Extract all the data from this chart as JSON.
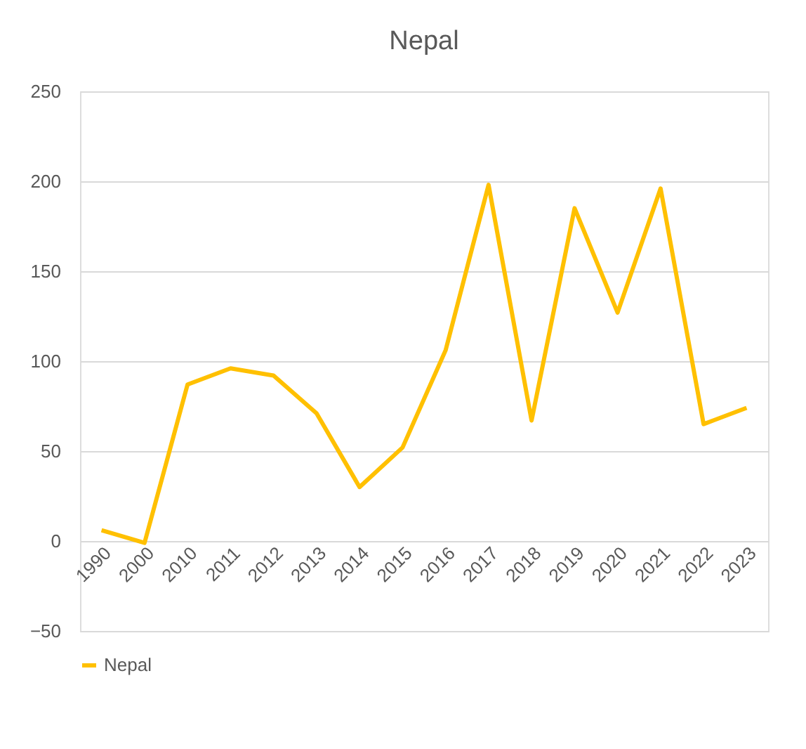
{
  "chart_data": {
    "type": "line",
    "title": "Nepal",
    "categories": [
      "1990",
      "2000",
      "2010",
      "2011",
      "2012",
      "2013",
      "2014",
      "2015",
      "2016",
      "2017",
      "2018",
      "2019",
      "2020",
      "2021",
      "2022",
      "2023"
    ],
    "series": [
      {
        "name": "Nepal",
        "color": "#ffc000",
        "values": [
          6,
          -1,
          87,
          96,
          92,
          71,
          30,
          52,
          106,
          198,
          67,
          185,
          127,
          196,
          65,
          74
        ]
      }
    ],
    "ylim": [
      -50,
      250
    ],
    "yticks": [
      -50,
      0,
      50,
      100,
      150,
      200,
      250
    ],
    "grid": "y",
    "legend": "bottom",
    "marker": "none",
    "line_style": "solid"
  }
}
